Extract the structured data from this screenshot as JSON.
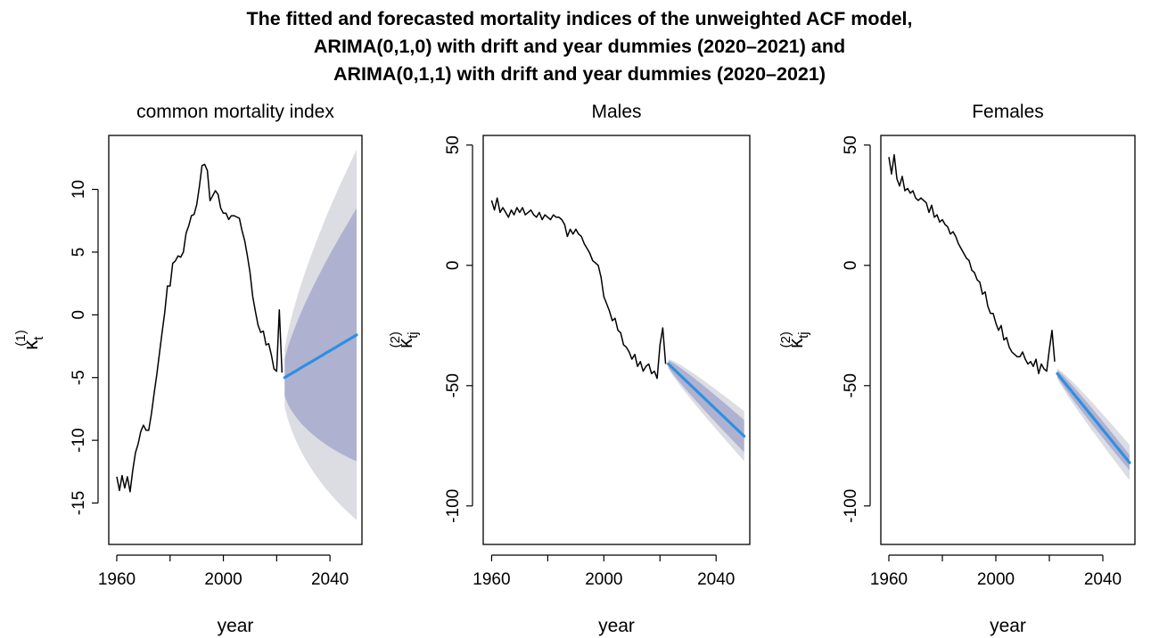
{
  "title_lines": [
    "The fitted and forecasted mortality indices of the unweighted ACF model,",
    "ARIMA(0,1,0) with drift and year dummies (2020–2021) and",
    "ARIMA(0,1,1) with drift and year dummies (2020–2021)"
  ],
  "colors": {
    "fitted_line": "#000000",
    "forecast_line": "#2f8fe0",
    "band_80": "#aeb2d0",
    "band_95": "#dcdce3"
  },
  "chart_data": [
    {
      "type": "line",
      "title": "common mortality index",
      "xlabel": "year",
      "ylabel": {
        "base": "κ",
        "sub": "t",
        "sup": "(1)"
      },
      "xlim": [
        1957,
        2052
      ],
      "ylim": [
        -18.3,
        14.3
      ],
      "xticks": [
        1960,
        2000,
        2040
      ],
      "xticks_minor": [
        1980,
        2020
      ],
      "yticks": [
        -15,
        -10,
        -5,
        0,
        5,
        10
      ],
      "series": [
        {
          "role": "fitted",
          "x": [
            1960,
            1961,
            1962,
            1963,
            1964,
            1965,
            1966,
            1967,
            1968,
            1969,
            1970,
            1971,
            1972,
            1973,
            1974,
            1975,
            1976,
            1977,
            1978,
            1979,
            1980,
            1981,
            1982,
            1983,
            1984,
            1985,
            1986,
            1987,
            1988,
            1989,
            1990,
            1991,
            1992,
            1993,
            1994,
            1995,
            1996,
            1997,
            1998,
            1999,
            2000,
            2001,
            2002,
            2003,
            2004,
            2005,
            2006,
            2007,
            2008,
            2009,
            2010,
            2011,
            2012,
            2013,
            2014,
            2015,
            2016,
            2017,
            2018,
            2019,
            2020,
            2021,
            2022
          ],
          "y": [
            -12.9,
            -14.0,
            -12.8,
            -13.8,
            -12.9,
            -14.1,
            -12.4,
            -11.0,
            -10.3,
            -9.3,
            -8.8,
            -9.2,
            -9.2,
            -7.9,
            -6.3,
            -4.8,
            -3.1,
            -1.4,
            0.2,
            2.3,
            2.3,
            4.1,
            4.3,
            4.7,
            4.6,
            5.0,
            6.5,
            7.1,
            7.9,
            8.0,
            8.8,
            10.2,
            11.9,
            12.0,
            11.5,
            9.1,
            9.5,
            9.9,
            9.6,
            8.5,
            8.1,
            8.1,
            7.6,
            7.9,
            7.9,
            7.8,
            7.7,
            6.7,
            5.9,
            4.7,
            3.4,
            1.5,
            0.3,
            -0.8,
            -1.4,
            -1.3,
            -2.4,
            -2.3,
            -3.2,
            -4.3,
            -4.5,
            0.4,
            -4.6
          ]
        },
        {
          "role": "forecast",
          "x": [
            2023,
            2024,
            2025,
            2026,
            2027,
            2028,
            2029,
            2030,
            2031,
            2032,
            2033,
            2034,
            2035,
            2036,
            2037,
            2038,
            2039,
            2040,
            2041,
            2042,
            2043,
            2044,
            2045,
            2046,
            2047,
            2048,
            2049,
            2050
          ],
          "y": [
            -5.0,
            -4.87,
            -4.75,
            -4.62,
            -4.5,
            -4.37,
            -4.24,
            -4.12,
            -3.99,
            -3.87,
            -3.74,
            -3.61,
            -3.49,
            -3.36,
            -3.24,
            -3.11,
            -2.98,
            -2.86,
            -2.73,
            -2.61,
            -2.48,
            -2.35,
            -2.23,
            -2.1,
            -1.98,
            -1.85,
            -1.72,
            -1.6
          ],
          "lower80": [
            -6.5,
            -7.03,
            -7.44,
            -7.77,
            -8.07,
            -8.35,
            -8.6,
            -8.83,
            -9.04,
            -9.25,
            -9.44,
            -9.62,
            -9.8,
            -9.96,
            -10.12,
            -10.27,
            -10.41,
            -10.55,
            -10.68,
            -10.81,
            -10.93,
            -11.05,
            -11.16,
            -11.27,
            -11.38,
            -11.48,
            -11.58,
            -11.68
          ],
          "upper80": [
            -3.5,
            -2.71,
            -2.06,
            -1.47,
            -0.93,
            -0.39,
            0.12,
            0.59,
            1.06,
            1.51,
            1.96,
            2.4,
            2.82,
            3.24,
            3.64,
            4.05,
            4.45,
            4.83,
            5.22,
            5.59,
            5.97,
            6.35,
            6.7,
            7.07,
            7.42,
            7.78,
            8.14,
            8.48
          ],
          "lower95": [
            -7.3,
            -8.17,
            -8.84,
            -9.41,
            -9.91,
            -10.38,
            -10.8,
            -11.2,
            -11.57,
            -11.92,
            -12.26,
            -12.58,
            -12.89,
            -13.18,
            -13.46,
            -13.73,
            -13.99,
            -14.24,
            -14.48,
            -14.72,
            -14.94,
            -15.16,
            -15.38,
            -15.58,
            -15.78,
            -15.98,
            -16.17,
            -16.36
          ],
          "upper95": [
            -2.7,
            -1.57,
            -0.66,
            0.17,
            0.91,
            1.64,
            2.32,
            2.96,
            3.59,
            4.18,
            4.78,
            5.36,
            5.91,
            6.46,
            6.98,
            7.51,
            8.03,
            8.52,
            9.02,
            9.5,
            9.98,
            10.46,
            10.92,
            11.38,
            11.82,
            12.28,
            12.73,
            13.16
          ]
        }
      ]
    },
    {
      "type": "line",
      "title": "Males",
      "xlabel": "year",
      "ylabel": {
        "base": "κ",
        "sub": "tj",
        "sup": "(2)"
      },
      "xlim": [
        1957,
        2052
      ],
      "ylim": [
        -116,
        54
      ],
      "xticks": [
        1960,
        2000,
        2040
      ],
      "xticks_minor": [
        1980,
        2020
      ],
      "yticks": [
        -100,
        -50,
        0,
        50
      ],
      "series": [
        {
          "role": "fitted",
          "x": [
            1960,
            1961,
            1962,
            1963,
            1964,
            1965,
            1966,
            1967,
            1968,
            1969,
            1970,
            1971,
            1972,
            1973,
            1974,
            1975,
            1976,
            1977,
            1978,
            1979,
            1980,
            1981,
            1982,
            1983,
            1984,
            1985,
            1986,
            1987,
            1988,
            1989,
            1990,
            1991,
            1992,
            1993,
            1994,
            1995,
            1996,
            1997,
            1998,
            1999,
            2000,
            2001,
            2002,
            2003,
            2004,
            2005,
            2006,
            2007,
            2008,
            2009,
            2010,
            2011,
            2012,
            2013,
            2014,
            2015,
            2016,
            2017,
            2018,
            2019,
            2020,
            2021,
            2022
          ],
          "y": [
            27,
            23,
            28,
            22,
            24,
            22,
            20,
            23,
            21,
            24,
            22,
            24,
            21,
            22,
            23,
            21,
            20,
            22,
            19,
            21,
            20,
            19,
            21,
            20,
            20,
            19,
            17,
            12,
            15,
            13,
            15,
            13,
            12,
            9,
            7,
            5,
            2,
            1,
            0,
            -5,
            -13,
            -16,
            -19,
            -23,
            -22,
            -27,
            -28,
            -33,
            -34,
            -36,
            -39,
            -37,
            -42,
            -40,
            -44,
            -42,
            -41,
            -45,
            -44,
            -47,
            -33,
            -26,
            -41
          ]
        },
        {
          "role": "forecast",
          "x": [
            2023,
            2024,
            2025,
            2026,
            2027,
            2028,
            2029,
            2030,
            2031,
            2032,
            2033,
            2034,
            2035,
            2036,
            2037,
            2038,
            2039,
            2040,
            2041,
            2042,
            2043,
            2044,
            2045,
            2046,
            2047,
            2048,
            2049,
            2050
          ],
          "y": [
            -41,
            -42.11,
            -43.22,
            -44.33,
            -45.44,
            -46.56,
            -47.67,
            -48.78,
            -49.89,
            -51,
            -52.11,
            -53.22,
            -54.33,
            -55.44,
            -56.56,
            -57.67,
            -58.78,
            -59.89,
            -61,
            -62.11,
            -63.22,
            -64.33,
            -65.44,
            -66.56,
            -67.67,
            -68.78,
            -69.89,
            -71
          ],
          "lower80": [
            -42.5,
            -44.12,
            -45.64,
            -47.1,
            -48.52,
            -49.91,
            -51.28,
            -52.62,
            -53.95,
            -55.27,
            -56.57,
            -57.87,
            -59.15,
            -60.42,
            -61.7,
            -62.95,
            -64.21,
            -65.46,
            -66.7,
            -67.94,
            -69.18,
            -70.41,
            -71.63,
            -72.86,
            -74.08,
            -75.29,
            -76.51,
            -77.72
          ],
          "upper80": [
            -39.5,
            -40.1,
            -40.8,
            -41.56,
            -42.36,
            -43.21,
            -44.06,
            -44.94,
            -45.83,
            -46.73,
            -47.65,
            -48.57,
            -49.51,
            -50.46,
            -51.42,
            -52.39,
            -53.35,
            -54.32,
            -55.3,
            -56.28,
            -57.26,
            -58.25,
            -59.25,
            -60.26,
            -61.26,
            -62.27,
            -63.27,
            -64.28
          ],
          "lower95": [
            -43,
            -44.86,
            -46.54,
            -48.15,
            -49.7,
            -51.22,
            -52.71,
            -54.17,
            -55.62,
            -57.05,
            -58.47,
            -59.87,
            -61.25,
            -62.64,
            -64.02,
            -65.38,
            -66.75,
            -68.1,
            -69.45,
            -70.79,
            -72.13,
            -73.46,
            -74.79,
            -76.12,
            -77.45,
            -78.76,
            -80.08,
            -81.4
          ],
          "upper95": [
            -39,
            -39.36,
            -39.9,
            -40.51,
            -41.18,
            -41.9,
            -42.63,
            -43.39,
            -44.16,
            -44.95,
            -45.75,
            -46.57,
            -47.41,
            -48.24,
            -49.1,
            -49.96,
            -50.81,
            -51.68,
            -52.55,
            -53.43,
            -54.31,
            -55.2,
            -56.09,
            -57,
            -57.89,
            -58.8,
            -59.7,
            -60.6
          ]
        }
      ]
    },
    {
      "type": "line",
      "title": "Females",
      "xlabel": "year",
      "ylabel": {
        "base": "κ",
        "sub": "tj",
        "sup": "(2)"
      },
      "xlim": [
        1957,
        2052
      ],
      "ylim": [
        -116,
        54
      ],
      "xticks": [
        1960,
        2000,
        2040
      ],
      "xticks_minor": [
        1980,
        2020
      ],
      "yticks": [
        -100,
        -50,
        0,
        50
      ],
      "series": [
        {
          "role": "fitted",
          "x": [
            1960,
            1961,
            1962,
            1963,
            1964,
            1965,
            1966,
            1967,
            1968,
            1969,
            1970,
            1971,
            1972,
            1973,
            1974,
            1975,
            1976,
            1977,
            1978,
            1979,
            1980,
            1981,
            1982,
            1983,
            1984,
            1985,
            1986,
            1987,
            1988,
            1989,
            1990,
            1991,
            1992,
            1993,
            1994,
            1995,
            1996,
            1997,
            1998,
            1999,
            2000,
            2001,
            2002,
            2003,
            2004,
            2005,
            2006,
            2007,
            2008,
            2009,
            2010,
            2011,
            2012,
            2013,
            2014,
            2015,
            2016,
            2017,
            2018,
            2019,
            2020,
            2021,
            2022
          ],
          "y": [
            45,
            38,
            46,
            36,
            33,
            37,
            31,
            32,
            30,
            31,
            28,
            27,
            28,
            27,
            26,
            22,
            25,
            20,
            21,
            18,
            19,
            17,
            16,
            13,
            14,
            12,
            9,
            7,
            5,
            3,
            2,
            -2,
            -3,
            -6,
            -7,
            -12,
            -11,
            -17,
            -20,
            -20,
            -24,
            -27,
            -25,
            -31,
            -30,
            -34,
            -36,
            -37,
            -38,
            -38,
            -36,
            -39,
            -41,
            -40,
            -42,
            -39,
            -45,
            -41,
            -43,
            -44,
            -35,
            -27,
            -40
          ]
        },
        {
          "role": "forecast",
          "x": [
            2023,
            2024,
            2025,
            2026,
            2027,
            2028,
            2029,
            2030,
            2031,
            2032,
            2033,
            2034,
            2035,
            2036,
            2037,
            2038,
            2039,
            2040,
            2041,
            2042,
            2043,
            2044,
            2045,
            2046,
            2047,
            2048,
            2049,
            2050
          ],
          "y": [
            -45,
            -46.37,
            -47.74,
            -49.11,
            -50.48,
            -51.85,
            -53.22,
            -54.59,
            -55.96,
            -57.33,
            -58.7,
            -60.07,
            -61.44,
            -62.81,
            -64.19,
            -65.56,
            -66.93,
            -68.3,
            -69.67,
            -71.04,
            -72.41,
            -73.78,
            -75.15,
            -76.52,
            -77.89,
            -79.26,
            -80.63,
            -82
          ],
          "lower80": [
            -46.4,
            -48.19,
            -49.87,
            -51.47,
            -53.03,
            -54.56,
            -56.06,
            -57.54,
            -59.01,
            -60.45,
            -61.89,
            -63.31,
            -64.72,
            -66.13,
            -67.53,
            -68.92,
            -70.3,
            -71.68,
            -73.06,
            -74.43,
            -75.79,
            -77.15,
            -78.51,
            -79.86,
            -81.21,
            -82.56,
            -83.9,
            -85.24
          ],
          "upper80": [
            -43.6,
            -44.55,
            -45.61,
            -46.75,
            -47.93,
            -49.14,
            -50.38,
            -51.64,
            -52.91,
            -54.21,
            -55.51,
            -56.83,
            -58.16,
            -59.49,
            -60.85,
            -62.2,
            -63.56,
            -64.92,
            -66.28,
            -67.65,
            -69.03,
            -70.41,
            -71.79,
            -73.18,
            -74.57,
            -75.96,
            -77.36,
            -78.76
          ],
          "lower95": [
            -47.1,
            -49.08,
            -50.92,
            -52.68,
            -54.39,
            -56.06,
            -57.7,
            -59.31,
            -60.91,
            -62.49,
            -64.05,
            -65.59,
            -67.12,
            -68.65,
            -70.17,
            -71.68,
            -73.18,
            -74.68,
            -76.17,
            -77.66,
            -79.14,
            -80.61,
            -82.08,
            -83.54,
            -85.01,
            -86.46,
            -87.92,
            -89.37
          ],
          "upper95": [
            -42.9,
            -43.66,
            -44.56,
            -45.54,
            -46.57,
            -47.64,
            -48.74,
            -49.87,
            -51.01,
            -52.17,
            -53.35,
            -54.55,
            -55.76,
            -56.97,
            -58.21,
            -59.44,
            -60.68,
            -61.92,
            -63.17,
            -64.42,
            -65.68,
            -66.95,
            -68.22,
            -69.5,
            -70.77,
            -72.06,
            -73.34,
            -74.63
          ]
        }
      ]
    }
  ]
}
